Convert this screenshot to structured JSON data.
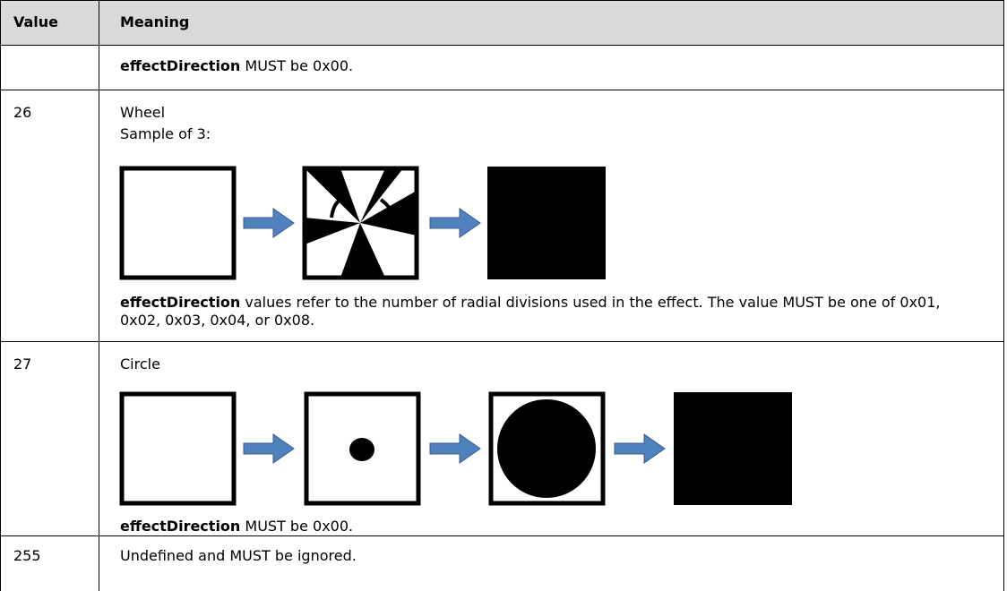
{
  "table": {
    "header": [
      "Value",
      "Meaning"
    ],
    "rows": [
      {
        "meaning": [
          {
            "bold": "effectDirection",
            "text": " MUST be 0x00."
          }
        ]
      },
      {
        "value": "26",
        "meaning": [
          {
            "text": "Wheel"
          },
          {
            "text": "Sample of 3:"
          },
          {
            "bold": "effectDirection",
            "text": " values refer to the number of radial divisions used in the effect. The value MUST be one of 0x01, 0x02, 0x03, 0x04, or 0x08."
          }
        ]
      },
      {
        "value": "27",
        "meaning": [
          {
            "text": "Circle"
          },
          {
            "bold": "effectDirection",
            "text": " MUST be 0x00."
          }
        ]
      },
      {
        "value": "255",
        "meaning": [
          {
            "text": "Undefined and MUST be ignored."
          }
        ]
      }
    ]
  }
}
